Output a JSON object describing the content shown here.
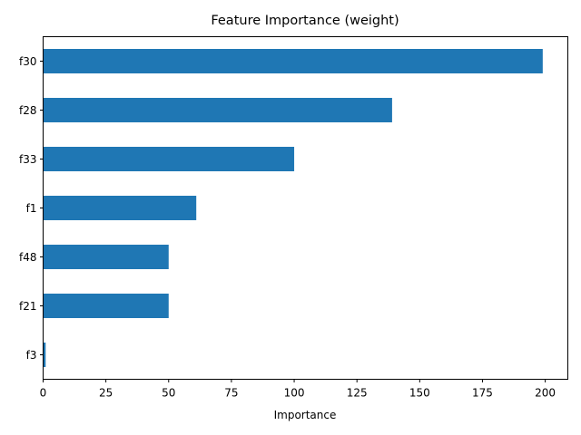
{
  "chart_data": {
    "type": "bar",
    "orientation": "horizontal",
    "title": "Feature Importance (weight)",
    "xlabel": "Importance",
    "ylabel": "",
    "categories": [
      "f30",
      "f28",
      "f33",
      "f1",
      "f48",
      "f21",
      "f3"
    ],
    "values": [
      199,
      139,
      100,
      61,
      50,
      50,
      1
    ],
    "xlim": [
      0,
      209
    ],
    "xticks": [
      0,
      25,
      50,
      75,
      100,
      125,
      150,
      175,
      200
    ],
    "grid": false,
    "bar_color": "#1f77b4"
  }
}
